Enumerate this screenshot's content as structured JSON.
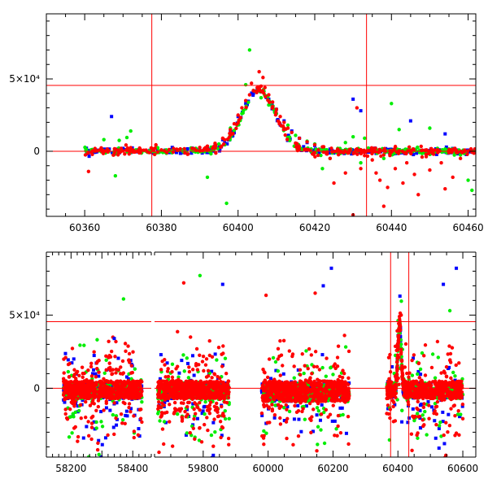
{
  "chart_data": [
    {
      "type": "scatter",
      "title": "",
      "xlabel": "",
      "ylabel": "",
      "xlim": [
        60350,
        60462
      ],
      "ylim": [
        -45000,
        95000
      ],
      "grid": false,
      "x_ticks": [
        60360,
        60380,
        60400,
        60420,
        60440,
        60460
      ],
      "x_tick_labels": [
        "60360",
        "60380",
        "60400",
        "60420",
        "60440",
        "60460"
      ],
      "y_ticks": [
        0,
        50000
      ],
      "y_tick_labels": [
        "0",
        "5×10⁴"
      ],
      "reference_lines": {
        "horizontal": [
          0,
          45500
        ],
        "vertical": [
          60377.5,
          60433.5
        ]
      },
      "series": [
        {
          "color": "#0000ff",
          "marker": "square",
          "points": [
            [
              60361,
              200
            ],
            [
              60363,
              -500
            ],
            [
              60365,
              1500
            ],
            [
              60366,
              800
            ],
            [
              60367,
              24000
            ],
            [
              60368,
              900
            ],
            [
              60370,
              2000
            ],
            [
              60372,
              -300
            ],
            [
              60374,
              1000
            ],
            [
              60376,
              500
            ],
            [
              60379,
              300
            ],
            [
              60381,
              800
            ],
            [
              60383,
              1500
            ],
            [
              60386,
              1200
            ],
            [
              60388,
              2200
            ],
            [
              60390,
              1800
            ],
            [
              60392,
              2500
            ],
            [
              60394,
              4000
            ],
            [
              60396,
              8000
            ],
            [
              60398,
              14000
            ],
            [
              60400,
              24000
            ],
            [
              60402,
              33000
            ],
            [
              60404,
              40000
            ],
            [
              60405,
              43000
            ],
            [
              60406,
              41000
            ],
            [
              60408,
              36000
            ],
            [
              60410,
              29000
            ],
            [
              60412,
              21000
            ],
            [
              60414,
              14000
            ],
            [
              60416,
              9000
            ],
            [
              60418,
              6000
            ],
            [
              60420,
              4000
            ],
            [
              60422,
              2500
            ],
            [
              60424,
              1500
            ],
            [
              60426,
              800
            ],
            [
              60428,
              600
            ],
            [
              60430,
              300
            ],
            [
              60432,
              28000
            ],
            [
              60434,
              -600
            ],
            [
              60436,
              200
            ],
            [
              60438,
              500
            ],
            [
              60440,
              -400
            ],
            [
              60442,
              1000
            ],
            [
              60444,
              300
            ],
            [
              60446,
              800
            ],
            [
              60448,
              -200
            ],
            [
              60450,
              600
            ],
            [
              60452,
              400
            ],
            [
              60454,
              12000
            ],
            [
              60456,
              500
            ],
            [
              60458,
              -1000
            ],
            [
              60460,
              800
            ],
            [
              60445,
              21000
            ],
            [
              60430,
              36000
            ]
          ]
        },
        {
          "color": "#00ee00",
          "marker": "circle",
          "points": [
            [
              60362,
              1200
            ],
            [
              60365,
              8000
            ],
            [
              60368,
              -17000
            ],
            [
              60369,
              7500
            ],
            [
              60371,
              9500
            ],
            [
              60372,
              14000
            ],
            [
              60374,
              1000
            ],
            [
              60377,
              500
            ],
            [
              60380,
              -100
            ],
            [
              60383,
              600
            ],
            [
              60386,
              1500
            ],
            [
              60389,
              2000
            ],
            [
              60392,
              -18000
            ],
            [
              60395,
              5000
            ],
            [
              60397,
              -36000
            ],
            [
              60398,
              16000
            ],
            [
              60401,
              26000
            ],
            [
              60402,
              46000
            ],
            [
              60403,
              70000
            ],
            [
              60404,
              42000
            ],
            [
              60406,
              37000
            ],
            [
              60408,
              32000
            ],
            [
              60410,
              26000
            ],
            [
              60413,
              18000
            ],
            [
              60415,
              11000
            ],
            [
              60418,
              7000
            ],
            [
              60420,
              5000
            ],
            [
              60422,
              -12000
            ],
            [
              60424,
              -5000
            ],
            [
              60426,
              2000
            ],
            [
              60428,
              6000
            ],
            [
              60430,
              10000
            ],
            [
              60432,
              -8000
            ],
            [
              60433,
              9000
            ],
            [
              60436,
              1500
            ],
            [
              60438,
              -5000
            ],
            [
              60440,
              33000
            ],
            [
              60442,
              15000
            ],
            [
              60445,
              800
            ],
            [
              60448,
              -1500
            ],
            [
              60450,
              16000
            ],
            [
              60452,
              2000
            ],
            [
              60455,
              1500
            ],
            [
              60458,
              -2500
            ],
            [
              60460,
              -20000
            ],
            [
              60461,
              -27000
            ]
          ]
        },
        {
          "color": "#ff0000",
          "marker": "circle",
          "points": [
            [
              60361,
              -14000
            ],
            [
              60362,
              300
            ],
            [
              60364,
              1000
            ],
            [
              60366,
              -500
            ],
            [
              60368,
              1500
            ],
            [
              60370,
              200
            ],
            [
              60372,
              2500
            ],
            [
              60374,
              -200
            ],
            [
              60376,
              800
            ],
            [
              60378,
              600
            ],
            [
              60380,
              900
            ],
            [
              60382,
              1100
            ],
            [
              60384,
              1400
            ],
            [
              60386,
              1700
            ],
            [
              60388,
              2000
            ],
            [
              60390,
              2600
            ],
            [
              60392,
              3500
            ],
            [
              60394,
              5500
            ],
            [
              60396,
              9000
            ],
            [
              60398,
              15000
            ],
            [
              60399,
              19000
            ],
            [
              60400,
              25000
            ],
            [
              60401,
              30000
            ],
            [
              60402,
              35000
            ],
            [
              60403,
              39000
            ],
            [
              60403.5,
              47000
            ],
            [
              60404,
              42000
            ],
            [
              60405,
              44000
            ],
            [
              60405.5,
              55000
            ],
            [
              60406,
              45000
            ],
            [
              60406.5,
              51000
            ],
            [
              60407,
              44000
            ],
            [
              60408,
              39000
            ],
            [
              60409,
              34000
            ],
            [
              60410,
              29000
            ],
            [
              60411,
              24000
            ],
            [
              60412,
              20000
            ],
            [
              60413,
              16000
            ],
            [
              60414,
              13000
            ],
            [
              60416,
              9000
            ],
            [
              60418,
              6500
            ],
            [
              60420,
              4500
            ],
            [
              60422,
              3000
            ],
            [
              60424,
              -5000
            ],
            [
              60425,
              -22000
            ],
            [
              60426,
              1500
            ],
            [
              60428,
              -15000
            ],
            [
              60429,
              900
            ],
            [
              60430,
              -44000
            ],
            [
              60431,
              30000
            ],
            [
              60432,
              -12000
            ],
            [
              60433,
              -3000
            ],
            [
              60434,
              500
            ],
            [
              60435,
              -6000
            ],
            [
              60436,
              -15000
            ],
            [
              60437,
              -20000
            ],
            [
              60438,
              -38000
            ],
            [
              60439,
              -25000
            ],
            [
              60440,
              -500
            ],
            [
              60441,
              -12000
            ],
            [
              60442,
              300
            ],
            [
              60443,
              -22000
            ],
            [
              60444,
              -8000
            ],
            [
              60445,
              500
            ],
            [
              60446,
              -16000
            ],
            [
              60447,
              -30000
            ],
            [
              60448,
              -4000
            ],
            [
              60449,
              800
            ],
            [
              60450,
              -13000
            ],
            [
              60451,
              -2000
            ],
            [
              60452,
              400
            ],
            [
              60453,
              -8000
            ],
            [
              60454,
              -26000
            ],
            [
              60455,
              -1000
            ],
            [
              60456,
              -18000
            ],
            [
              60457,
              300
            ],
            [
              60458,
              -5000
            ],
            [
              60459,
              -300
            ],
            [
              60460,
              200
            ],
            [
              60461,
              -600
            ]
          ]
        }
      ]
    },
    {
      "type": "scatter",
      "title": "",
      "xlabel": "",
      "ylabel": "",
      "ylim": [
        -47000,
        93000
      ],
      "grid": false,
      "broken_axis": true,
      "segments": [
        {
          "xlim": [
            58120,
            58460
          ],
          "x_ticks": [
            58200,
            58300,
            58400
          ],
          "x_tick_labels": [
            "58200",
            "58400"
          ],
          "x_tick_label_values": [
            58200,
            58400
          ],
          "cluster": {
            "x_range": [
              58175,
              58430
            ],
            "dense_band": [
              -7000,
              5000
            ]
          }
        },
        {
          "xlim": [
            59650,
            60640
          ],
          "x_ticks": [
            59800,
            60000,
            60200,
            60400,
            60600
          ],
          "x_tick_labels": [
            "59800",
            "60000",
            "60200",
            "60400",
            "60600"
          ],
          "x_tick_label_values": [
            59800,
            60000,
            60200,
            60400,
            60600
          ],
          "clusters": [
            {
              "x_range": [
                59660,
                59880
              ],
              "dense_band": [
                -7000,
                5000
              ]
            },
            {
              "x_range": [
                59980,
                60250
              ],
              "dense_band": [
                -9000,
                5000
              ]
            },
            {
              "x_range": [
                60365,
                60600
              ],
              "dense_band": [
                -7000,
                5000
              ],
              "peak_x": 60405
            }
          ]
        }
      ],
      "y_ticks": [
        0,
        50000
      ],
      "y_tick_labels": [
        "0",
        "5×10⁴"
      ],
      "reference_lines": {
        "horizontal": [
          0,
          45500
        ],
        "vertical": [
          60377.5,
          60433.5
        ]
      },
      "sparse_points": [
        {
          "color": "#00ee00",
          "x": 58370,
          "y": 61000
        },
        {
          "color": "#0000ff",
          "x": 58340,
          "y": 34000
        },
        {
          "color": "#ff0000",
          "x": 58322,
          "y": 32000
        },
        {
          "color": "#00ee00",
          "x": 59790,
          "y": 77000
        },
        {
          "color": "#ff0000",
          "x": 59740,
          "y": 72000
        },
        {
          "color": "#0000ff",
          "x": 59860,
          "y": 71000
        },
        {
          "color": "#0000ff",
          "x": 60195,
          "y": 82000
        },
        {
          "color": "#0000ff",
          "x": 60170,
          "y": 70000
        },
        {
          "color": "#ff0000",
          "x": 60145,
          "y": 65000
        },
        {
          "color": "#0000ff",
          "x": 60580,
          "y": 82000
        },
        {
          "color": "#0000ff",
          "x": 60540,
          "y": 71000
        },
        {
          "color": "#00ee00",
          "x": 60560,
          "y": 53000
        },
        {
          "color": "#ff0000",
          "x": 60410,
          "y": 50000
        }
      ]
    }
  ]
}
